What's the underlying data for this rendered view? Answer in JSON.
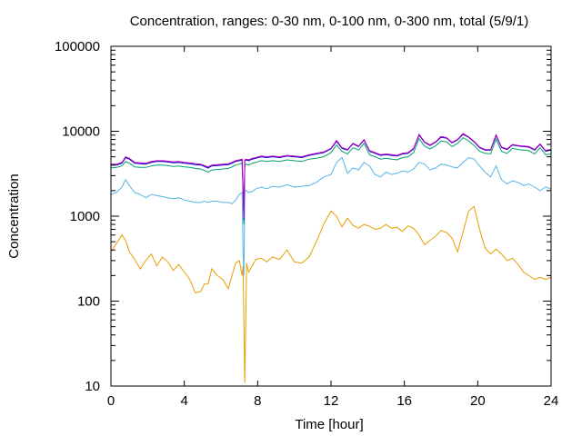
{
  "chart_data": {
    "type": "line",
    "title": "Concentration, ranges: 0-30 nm, 0-100 nm, 0-300 nm, total (5/9/1)",
    "xlabel": "Time [hour]",
    "ylabel": "Concentration",
    "xlim": [
      0,
      24
    ],
    "ylim": [
      10,
      100000
    ],
    "y_scale": "log",
    "x_ticks": [
      0,
      4,
      8,
      12,
      16,
      20,
      24
    ],
    "x_tick_labels": [
      "0",
      "4",
      "8",
      "12",
      "16",
      "20",
      "24"
    ],
    "y_ticks": [
      10,
      100,
      1000,
      10000,
      100000
    ],
    "y_tick_labels": [
      "10",
      "100",
      "1000",
      "10000",
      "100000"
    ],
    "grid": false,
    "colors": [
      "#E69F00",
      "#56B4E9",
      "#009E73",
      "#0000CC",
      "#C000C0"
    ],
    "series": [
      {
        "x": [
          0.0,
          0.3,
          0.6,
          0.8,
          1.0,
          1.3,
          1.6,
          1.9,
          2.2,
          2.5,
          2.8,
          3.1,
          3.4,
          3.7,
          4.0,
          4.3,
          4.6,
          4.9,
          5.1,
          5.3,
          5.5,
          5.8,
          6.1,
          6.4,
          6.6,
          6.8,
          7.0,
          7.15,
          7.2,
          7.25,
          7.3,
          7.4,
          7.5,
          7.7,
          7.9,
          8.2,
          8.5,
          8.8,
          9.2,
          9.6,
          10.0,
          10.4,
          10.8,
          11.2,
          11.6,
          12.0,
          12.3,
          12.6,
          12.9,
          13.2,
          13.5,
          13.8,
          14.1,
          14.4,
          14.7,
          15.0,
          15.3,
          15.6,
          15.9,
          16.2,
          16.5,
          16.8,
          17.1,
          17.4,
          17.7,
          18.0,
          18.3,
          18.6,
          18.9,
          19.2,
          19.5,
          19.8,
          20.1,
          20.4,
          20.7,
          21.0,
          21.3,
          21.6,
          21.9,
          22.2,
          22.5,
          22.8,
          23.1,
          23.4,
          23.7,
          24.0
        ],
        "values": [
          380,
          480,
          600,
          520,
          380,
          310,
          240,
          300,
          360,
          260,
          330,
          290,
          230,
          270,
          220,
          180,
          125,
          130,
          160,
          160,
          240,
          200,
          180,
          140,
          200,
          280,
          300,
          200,
          260,
          60,
          11,
          280,
          220,
          260,
          310,
          320,
          290,
          330,
          310,
          400,
          290,
          280,
          330,
          500,
          800,
          1150,
          1000,
          750,
          950,
          780,
          720,
          800,
          760,
          700,
          720,
          800,
          720,
          740,
          660,
          770,
          720,
          600,
          460,
          520,
          580,
          680,
          640,
          550,
          380,
          650,
          1150,
          1300,
          700,
          420,
          360,
          410,
          360,
          300,
          320,
          270,
          220,
          200,
          180,
          190,
          180,
          190
        ]
      },
      {
        "x": [
          0.0,
          0.3,
          0.6,
          0.8,
          1.0,
          1.3,
          1.6,
          1.9,
          2.2,
          2.5,
          2.8,
          3.1,
          3.4,
          3.7,
          4.0,
          4.3,
          4.6,
          4.9,
          5.1,
          5.3,
          5.5,
          5.8,
          6.1,
          6.4,
          6.6,
          6.8,
          7.0,
          7.15,
          7.2,
          7.25,
          7.3,
          7.4,
          7.5,
          7.7,
          7.9,
          8.2,
          8.5,
          8.8,
          9.2,
          9.6,
          10.0,
          10.4,
          10.8,
          11.2,
          11.6,
          12.0,
          12.3,
          12.6,
          12.9,
          13.2,
          13.5,
          13.8,
          14.1,
          14.4,
          14.7,
          15.0,
          15.3,
          15.6,
          15.9,
          16.2,
          16.5,
          16.8,
          17.1,
          17.4,
          17.7,
          18.0,
          18.3,
          18.6,
          18.9,
          19.2,
          19.5,
          19.8,
          20.1,
          20.4,
          20.7,
          21.0,
          21.3,
          21.6,
          21.9,
          22.2,
          22.5,
          22.8,
          23.1,
          23.4,
          23.7,
          24.0
        ],
        "values": [
          1800,
          1900,
          2200,
          2700,
          2300,
          1900,
          1800,
          1650,
          1800,
          1750,
          1700,
          1650,
          1600,
          1650,
          1550,
          1500,
          1450,
          1450,
          1500,
          1450,
          1500,
          1500,
          1450,
          1450,
          1400,
          1550,
          1800,
          1900,
          400,
          200,
          2000,
          2000,
          1900,
          1950,
          2100,
          2200,
          2100,
          2250,
          2200,
          2350,
          2200,
          2250,
          2300,
          2500,
          2900,
          3100,
          4300,
          4900,
          3200,
          3700,
          3500,
          4300,
          3900,
          3100,
          2900,
          3300,
          3100,
          3200,
          3400,
          3300,
          3600,
          4300,
          4100,
          3500,
          3700,
          4100,
          4000,
          3800,
          3700,
          4300,
          4900,
          4700,
          3900,
          3300,
          2900,
          3900,
          2700,
          2400,
          2600,
          2500,
          2300,
          2400,
          2200,
          2000,
          2200,
          2100
        ]
      },
      {
        "x": [
          0.0,
          0.3,
          0.6,
          0.8,
          1.0,
          1.3,
          1.6,
          1.9,
          2.2,
          2.5,
          2.8,
          3.1,
          3.4,
          3.7,
          4.0,
          4.3,
          4.6,
          4.9,
          5.1,
          5.3,
          5.5,
          5.8,
          6.1,
          6.4,
          6.6,
          6.8,
          7.0,
          7.15,
          7.2,
          7.25,
          7.3,
          7.4,
          7.5,
          7.7,
          7.9,
          8.2,
          8.5,
          8.8,
          9.2,
          9.6,
          10.0,
          10.4,
          10.8,
          11.2,
          11.6,
          12.0,
          12.3,
          12.6,
          12.9,
          13.2,
          13.5,
          13.8,
          14.1,
          14.4,
          14.7,
          15.0,
          15.3,
          15.6,
          15.9,
          16.2,
          16.5,
          16.8,
          17.1,
          17.4,
          17.7,
          18.0,
          18.3,
          18.6,
          18.9,
          19.2,
          19.5,
          19.8,
          20.1,
          20.4,
          20.7,
          21.0,
          21.3,
          21.6,
          21.9,
          22.2,
          22.5,
          22.8,
          23.1,
          23.4,
          23.7,
          24.0
        ],
        "values": [
          3700,
          3750,
          3900,
          4400,
          4200,
          3800,
          3750,
          3750,
          3900,
          4000,
          4000,
          3950,
          3850,
          3900,
          3800,
          3750,
          3650,
          3600,
          3450,
          3300,
          3500,
          3550,
          3600,
          3650,
          3800,
          4000,
          4100,
          4200,
          2000,
          800,
          4000,
          4100,
          4000,
          4200,
          4300,
          4500,
          4400,
          4500,
          4400,
          4600,
          4500,
          4400,
          4700,
          4800,
          5000,
          5600,
          6900,
          5800,
          5400,
          6400,
          6000,
          7200,
          5300,
          5000,
          4700,
          4800,
          4700,
          4600,
          4900,
          5000,
          5600,
          8200,
          6700,
          6200,
          6700,
          7700,
          7500,
          6600,
          7200,
          8400,
          7700,
          6800,
          5800,
          5500,
          5400,
          8100,
          5800,
          5500,
          6300,
          6100,
          6000,
          5900,
          5400,
          6400,
          5300,
          5400
        ]
      },
      {
        "x": [
          0.0,
          0.3,
          0.6,
          0.8,
          1.0,
          1.3,
          1.6,
          1.9,
          2.2,
          2.5,
          2.8,
          3.1,
          3.4,
          3.7,
          4.0,
          4.3,
          4.6,
          4.9,
          5.1,
          5.3,
          5.5,
          5.8,
          6.1,
          6.4,
          6.6,
          6.8,
          7.0,
          7.15,
          7.2,
          7.25,
          7.3,
          7.4,
          7.5,
          7.7,
          7.9,
          8.2,
          8.5,
          8.8,
          9.2,
          9.6,
          10.0,
          10.4,
          10.8,
          11.2,
          11.6,
          12.0,
          12.3,
          12.6,
          12.9,
          13.2,
          13.5,
          13.8,
          14.1,
          14.4,
          14.7,
          15.0,
          15.3,
          15.6,
          15.9,
          16.2,
          16.5,
          16.8,
          17.1,
          17.4,
          17.7,
          18.0,
          18.3,
          18.6,
          18.9,
          19.2,
          19.5,
          19.8,
          20.1,
          20.4,
          20.7,
          21.0,
          21.3,
          21.6,
          21.9,
          22.2,
          22.5,
          22.8,
          23.1,
          23.4,
          23.7,
          24.0
        ],
        "values": [
          4000,
          4000,
          4200,
          4900,
          4700,
          4200,
          4150,
          4100,
          4300,
          4400,
          4400,
          4350,
          4250,
          4300,
          4200,
          4150,
          4050,
          4000,
          3850,
          3700,
          3900,
          3950,
          4000,
          4050,
          4200,
          4400,
          4500,
          4600,
          2200,
          900,
          4500,
          4600,
          4500,
          4700,
          4800,
          5000,
          4900,
          5000,
          4900,
          5100,
          5000,
          4900,
          5200,
          5400,
          5600,
          6200,
          7600,
          6300,
          6000,
          7100,
          6600,
          7900,
          5800,
          5500,
          5200,
          5300,
          5200,
          5100,
          5400,
          5500,
          6200,
          9000,
          7400,
          6800,
          7400,
          8500,
          8300,
          7300,
          7900,
          9200,
          8500,
          7500,
          6400,
          6000,
          6000,
          8900,
          6400,
          6100,
          6900,
          6700,
          6600,
          6500,
          6000,
          7000,
          5800,
          6000
        ]
      },
      {
        "x": [
          0.0,
          0.3,
          0.6,
          0.8,
          1.0,
          1.3,
          1.6,
          1.9,
          2.2,
          2.5,
          2.8,
          3.1,
          3.4,
          3.7,
          4.0,
          4.3,
          4.6,
          4.9,
          5.1,
          5.3,
          5.5,
          5.8,
          6.1,
          6.4,
          6.6,
          6.8,
          7.0,
          7.15,
          7.2,
          7.25,
          7.3,
          7.4,
          7.5,
          7.7,
          7.9,
          8.2,
          8.5,
          8.8,
          9.2,
          9.6,
          10.0,
          10.4,
          10.8,
          11.2,
          11.6,
          12.0,
          12.3,
          12.6,
          12.9,
          13.2,
          13.5,
          13.8,
          14.1,
          14.4,
          14.7,
          15.0,
          15.3,
          15.6,
          15.9,
          16.2,
          16.5,
          16.8,
          17.1,
          17.4,
          17.7,
          18.0,
          18.3,
          18.6,
          18.9,
          19.2,
          19.5,
          19.8,
          20.1,
          20.4,
          20.7,
          21.0,
          21.3,
          21.6,
          21.9,
          22.2,
          22.5,
          22.8,
          23.1,
          23.4,
          23.7,
          24.0
        ],
        "values": [
          4100,
          4100,
          4300,
          5000,
          4800,
          4300,
          4250,
          4200,
          4400,
          4500,
          4500,
          4450,
          4350,
          4400,
          4300,
          4250,
          4150,
          4100,
          3950,
          3800,
          4000,
          4050,
          4100,
          4150,
          4300,
          4500,
          4600,
          4700,
          2300,
          950,
          4600,
          4700,
          4600,
          4800,
          4900,
          5100,
          5000,
          5100,
          5000,
          5200,
          5100,
          5000,
          5300,
          5500,
          5700,
          6300,
          7800,
          6400,
          6100,
          7200,
          6700,
          8000,
          5900,
          5600,
          5300,
          5400,
          5300,
          5200,
          5500,
          5600,
          6300,
          9200,
          7500,
          6900,
          7500,
          8700,
          8400,
          7400,
          8000,
          9400,
          8600,
          7600,
          6500,
          6100,
          6100,
          9100,
          6500,
          6200,
          7000,
          6800,
          6700,
          6600,
          6100,
          7100,
          5900,
          6100
        ]
      }
    ]
  }
}
